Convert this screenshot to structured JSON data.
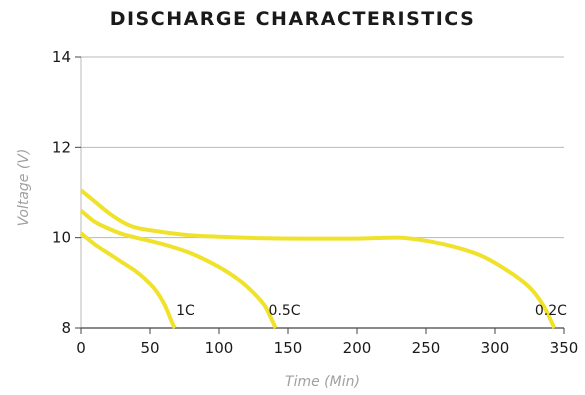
{
  "chart_data": {
    "type": "line",
    "title": "DISCHARGE CHARACTERISTICS",
    "xlabel": "Time (Min)",
    "ylabel": "Voltage (V)",
    "xlim": [
      0,
      350
    ],
    "ylim": [
      8,
      14
    ],
    "xticks": [
      0,
      50,
      100,
      150,
      200,
      250,
      300,
      350
    ],
    "yticks": [
      8,
      10,
      12,
      14
    ],
    "grid": "horizontal",
    "line_color": "#f0e22a",
    "grid_color": "#b8b8b8",
    "series": [
      {
        "name": "1C",
        "label": "1C",
        "x": [
          0,
          10,
          20,
          30,
          40,
          50,
          55,
          60,
          63,
          66,
          68
        ],
        "y": [
          10.1,
          9.85,
          9.65,
          9.45,
          9.25,
          8.98,
          8.8,
          8.55,
          8.35,
          8.12,
          8.0
        ]
      },
      {
        "name": "0.5C",
        "label": "0.5C",
        "x": [
          0,
          10,
          20,
          30,
          40,
          60,
          80,
          100,
          115,
          125,
          133,
          138,
          141
        ],
        "y": [
          10.6,
          10.35,
          10.2,
          10.08,
          10.0,
          9.85,
          9.65,
          9.35,
          9.05,
          8.78,
          8.5,
          8.2,
          8.0
        ]
      },
      {
        "name": "0.2C",
        "label": "0.2C",
        "x": [
          0,
          10,
          20,
          30,
          40,
          60,
          80,
          100,
          130,
          160,
          200,
          230,
          250,
          270,
          290,
          310,
          325,
          335,
          343
        ],
        "y": [
          11.05,
          10.8,
          10.55,
          10.35,
          10.22,
          10.12,
          10.05,
          10.02,
          9.99,
          9.98,
          9.98,
          10.0,
          9.93,
          9.8,
          9.6,
          9.25,
          8.9,
          8.5,
          8.0
        ]
      }
    ],
    "series_label_positions": [
      {
        "x": 66,
        "y": 8.4
      },
      {
        "x": 133,
        "y": 8.4
      },
      {
        "x": 326,
        "y": 8.4
      }
    ]
  }
}
